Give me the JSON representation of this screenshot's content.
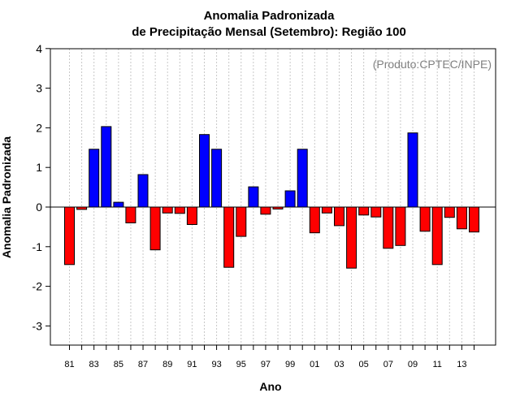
{
  "chart_data": {
    "type": "bar",
    "title": [
      "Anomalia Padronizada",
      "de Precipitação Mensal (Setembro): Região 100"
    ],
    "annotation": "(Produto:CPTEC/INPE)",
    "xlabel": "Ano",
    "ylabel": "Anomalia Padronizada",
    "ylim": [
      -3.5,
      4.1
    ],
    "yticks": [
      "-3",
      "-2",
      "-1",
      "0",
      "1",
      "2",
      "3",
      "4"
    ],
    "yticks_values": [
      -3,
      -2,
      -1,
      0,
      1,
      2,
      3,
      4
    ],
    "grid": true,
    "colors": {
      "positive": "#0000ff",
      "negative": "#ff0000",
      "grid": "#c8c8c8",
      "source": "#808080"
    },
    "categories": [
      "81",
      "82",
      "83",
      "84",
      "85",
      "86",
      "87",
      "88",
      "89",
      "90",
      "91",
      "92",
      "93",
      "94",
      "95",
      "96",
      "97",
      "98",
      "99",
      "00",
      "01",
      "02",
      "03",
      "04",
      "05",
      "06",
      "07",
      "08",
      "09",
      "10",
      "11",
      "12",
      "13",
      "14"
    ],
    "xtick_labels": [
      "81",
      "",
      "83",
      "",
      "85",
      "",
      "87",
      "",
      "89",
      "",
      "91",
      "",
      "93",
      "",
      "95",
      "",
      "97",
      "",
      "99",
      "",
      "01",
      "",
      "03",
      "",
      "05",
      "",
      "07",
      "",
      "09",
      "",
      "11",
      "",
      "13",
      ""
    ],
    "values": [
      -1.45,
      -0.06,
      1.46,
      2.03,
      0.12,
      -0.4,
      0.82,
      -1.08,
      -0.15,
      -0.16,
      -0.44,
      1.83,
      1.46,
      -1.52,
      -0.74,
      0.51,
      -0.18,
      -0.05,
      0.41,
      1.46,
      -0.65,
      -0.15,
      -0.47,
      -1.54,
      -0.2,
      -0.25,
      -1.04,
      -0.97,
      1.87,
      -0.61,
      -1.45,
      -0.26,
      -0.55,
      -0.63
    ]
  }
}
